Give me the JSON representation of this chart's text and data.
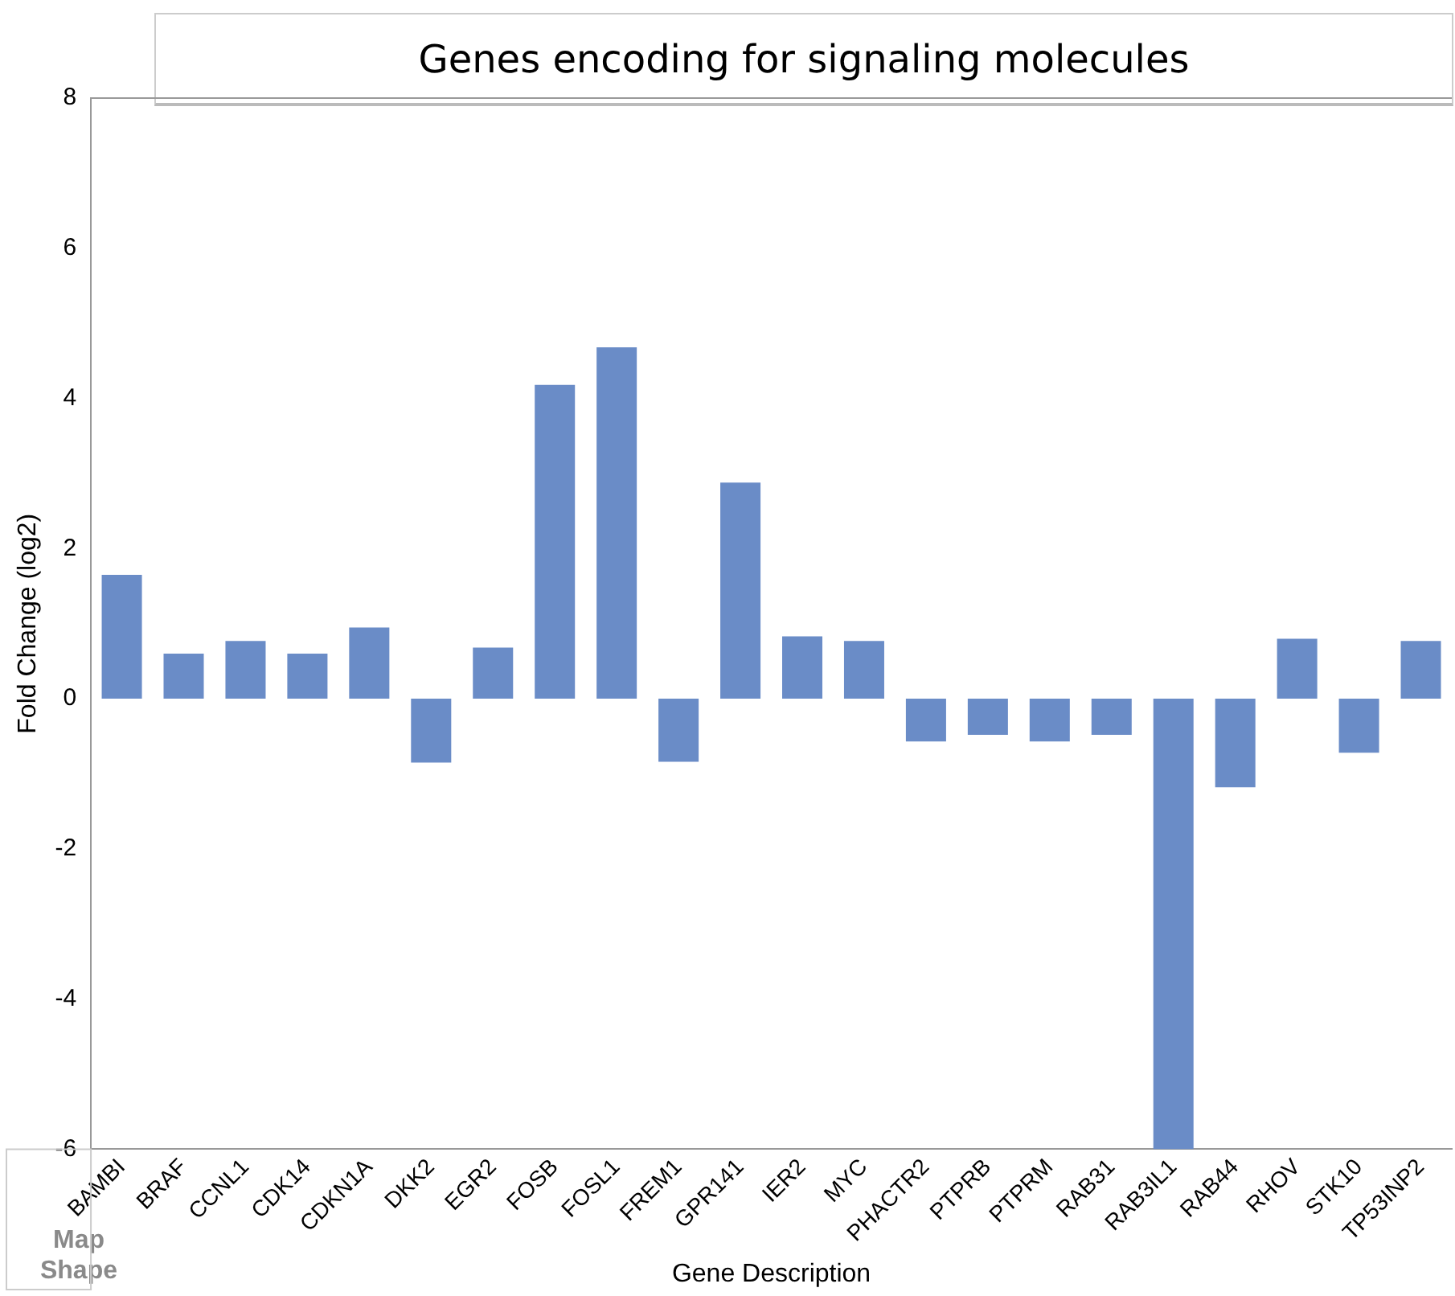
{
  "chart_data": {
    "type": "bar",
    "title": "Genes encoding for signaling molecules",
    "xlabel": "Gene Description",
    "ylabel": "Fold Change (log2)",
    "categories": [
      "BAMBI",
      "BRAF",
      "CCNL1",
      "CDK14",
      "CDKN1A",
      "DKK2",
      "EGR2",
      "FOSB",
      "FOSL1",
      "FREM1",
      "GPR141",
      "IER2",
      "MYC",
      "PHACTR2",
      "PTPRB",
      "PTPRM",
      "RAB31",
      "RAB3IL1",
      "RAB44",
      "RHOV",
      "STK10",
      "TP53INP2"
    ],
    "values": [
      1.65,
      0.6,
      0.77,
      0.6,
      0.95,
      -0.85,
      0.68,
      4.18,
      4.68,
      -0.84,
      2.88,
      0.83,
      0.77,
      -0.57,
      -0.48,
      -0.57,
      -0.48,
      -6,
      -1.18,
      0.8,
      -0.72,
      0.77
    ],
    "color": "#6a8cc7",
    "ylim": [
      -6,
      8
    ],
    "yticks": [
      -6,
      -4,
      -2,
      0,
      2,
      4,
      6,
      8
    ],
    "grid": false,
    "legend": false,
    "annotations": [
      "Map Shape"
    ]
  }
}
